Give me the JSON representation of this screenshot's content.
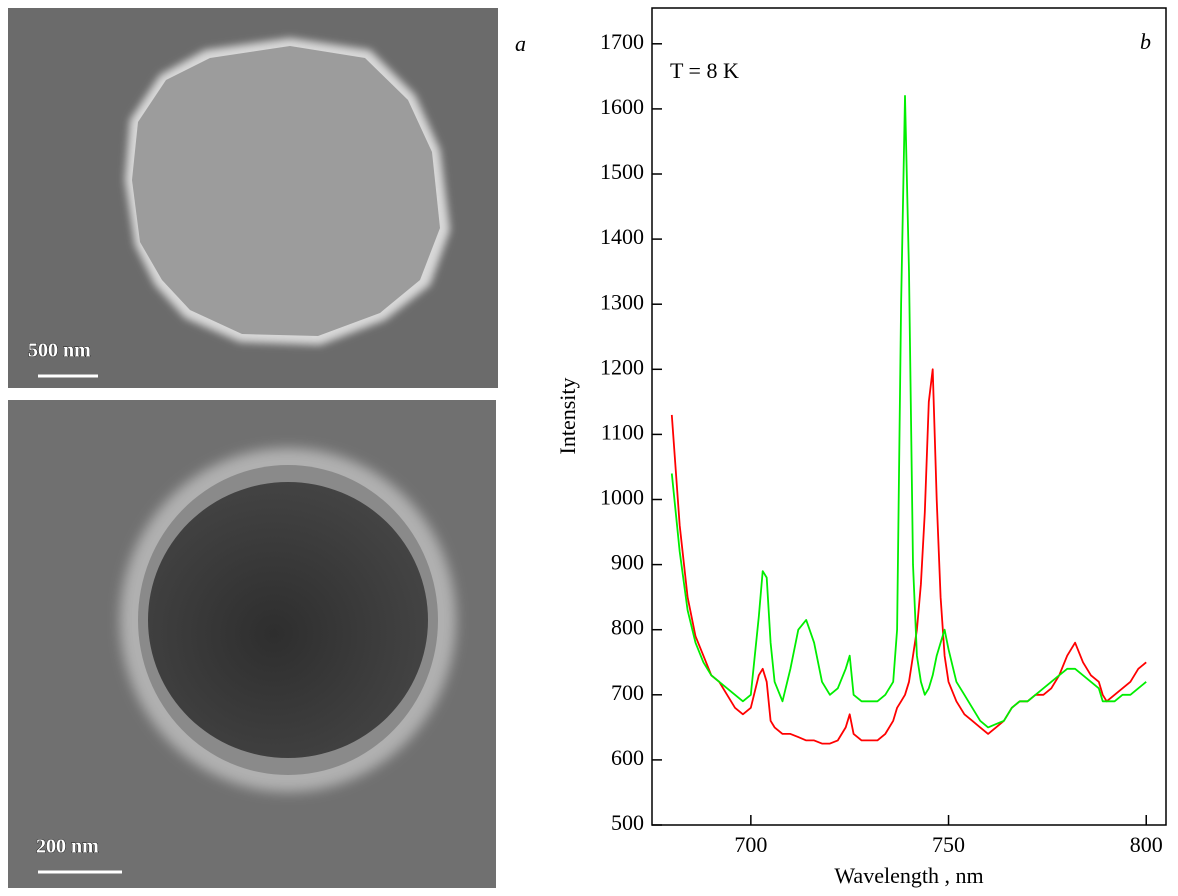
{
  "figure": {
    "panel_a": "a",
    "panel_b": "b",
    "scale_top": "500 nm",
    "scale_bottom": "200 nm"
  },
  "chart_data": {
    "type": "line",
    "annotation": "T = 8 K",
    "x_label": "Wavelength , nm",
    "y_label": "Intensity",
    "xlim": [
      675,
      805
    ],
    "ylim": [
      500,
      1755
    ],
    "xticks": [
      700,
      750,
      800
    ],
    "yticks": [
      500,
      600,
      700,
      800,
      900,
      1000,
      1100,
      1200,
      1300,
      1400,
      1500,
      1600,
      1700
    ],
    "x": [
      680,
      682,
      684,
      686,
      688,
      690,
      692,
      694,
      696,
      698,
      700,
      702,
      703,
      704,
      705,
      706,
      708,
      710,
      712,
      714,
      716,
      718,
      720,
      722,
      724,
      725,
      726,
      728,
      730,
      732,
      734,
      736,
      737,
      738,
      739,
      740,
      741,
      742,
      743,
      744,
      745,
      746,
      747,
      748,
      749,
      750,
      752,
      754,
      756,
      758,
      760,
      762,
      764,
      766,
      768,
      770,
      772,
      774,
      776,
      778,
      780,
      782,
      784,
      786,
      788,
      789,
      790,
      792,
      794,
      796,
      798,
      800
    ],
    "series": [
      {
        "color": "#ff0000",
        "values": [
          1130,
          960,
          850,
          790,
          760,
          730,
          720,
          700,
          680,
          670,
          680,
          730,
          740,
          720,
          660,
          650,
          640,
          640,
          635,
          630,
          630,
          625,
          625,
          630,
          650,
          670,
          640,
          630,
          630,
          630,
          640,
          660,
          680,
          690,
          700,
          720,
          760,
          800,
          870,
          980,
          1150,
          1200,
          1000,
          850,
          760,
          720,
          690,
          670,
          660,
          650,
          640,
          650,
          660,
          680,
          690,
          690,
          700,
          700,
          710,
          730,
          760,
          780,
          750,
          730,
          720,
          700,
          690,
          700,
          710,
          720,
          740,
          750
        ]
      },
      {
        "color": "#00ee00",
        "values": [
          1040,
          920,
          830,
          780,
          750,
          730,
          720,
          710,
          700,
          690,
          700,
          820,
          890,
          880,
          780,
          720,
          690,
          740,
          800,
          815,
          780,
          720,
          700,
          710,
          740,
          760,
          700,
          690,
          690,
          690,
          700,
          720,
          800,
          1300,
          1620,
          1350,
          900,
          760,
          720,
          700,
          710,
          730,
          760,
          780,
          800,
          770,
          720,
          700,
          680,
          660,
          650,
          655,
          660,
          680,
          690,
          690,
          700,
          710,
          720,
          730,
          740,
          740,
          730,
          720,
          710,
          690,
          690,
          690,
          700,
          700,
          710,
          720
        ]
      }
    ]
  }
}
